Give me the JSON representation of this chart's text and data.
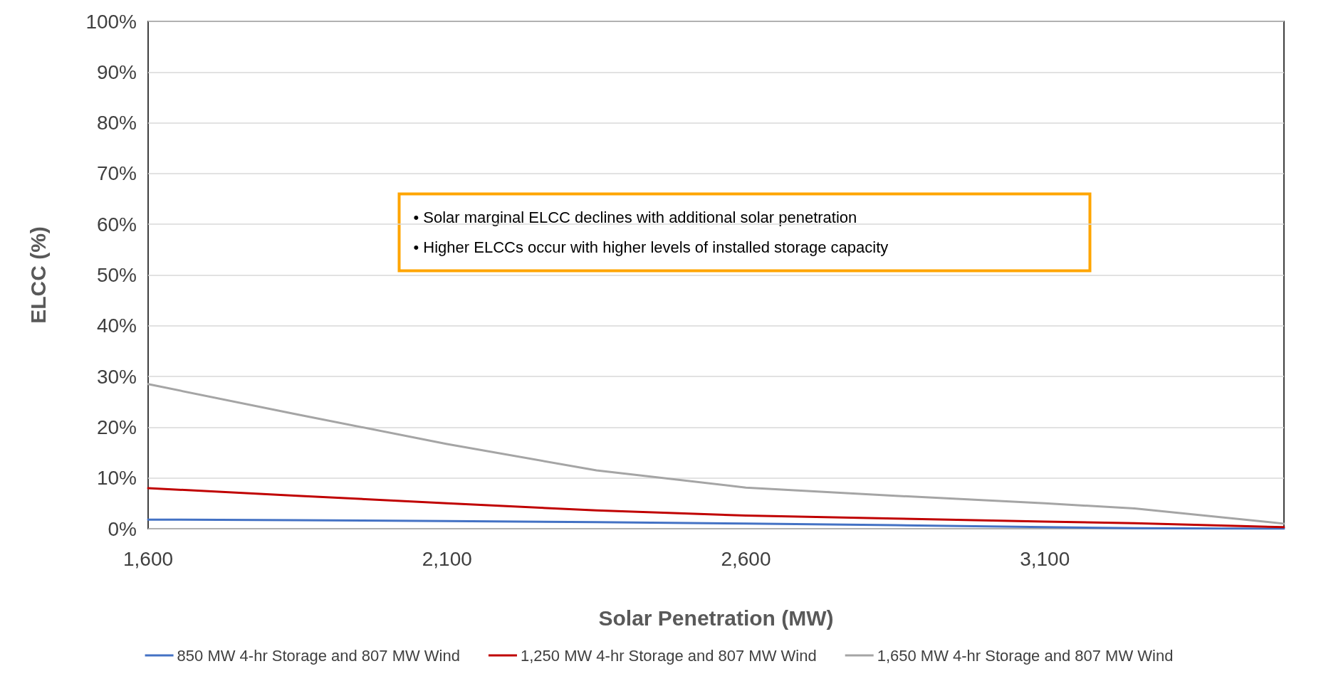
{
  "chart_data": {
    "type": "line",
    "xlabel": "Solar Penetration (MW)",
    "ylabel": "ELCC (%)",
    "xlim": [
      1600,
      3500
    ],
    "xticks": [
      {
        "value": 1600,
        "label": "1,600"
      },
      {
        "value": 2100,
        "label": "2,100"
      },
      {
        "value": 2600,
        "label": "2,600"
      },
      {
        "value": 3100,
        "label": "3,100"
      }
    ],
    "ylim": [
      0,
      100
    ],
    "yticks": [
      {
        "value": 0,
        "label": "0%"
      },
      {
        "value": 10,
        "label": "10%"
      },
      {
        "value": 20,
        "label": "20%"
      },
      {
        "value": 30,
        "label": "30%"
      },
      {
        "value": 40,
        "label": "40%"
      },
      {
        "value": 50,
        "label": "50%"
      },
      {
        "value": 60,
        "label": "60%"
      },
      {
        "value": 70,
        "label": "70%"
      },
      {
        "value": 80,
        "label": "80%"
      },
      {
        "value": 90,
        "label": "90%"
      },
      {
        "value": 100,
        "label": "100%"
      }
    ],
    "x": [
      1600,
      1850,
      2100,
      2350,
      2600,
      2850,
      3100,
      3250,
      3500
    ],
    "series": [
      {
        "name": "850 MW 4-hr Storage and 807 MW Wind",
        "color": "#4472c4",
        "values": [
          1.8,
          1.7,
          1.5,
          1.3,
          1.0,
          0.7,
          0.3,
          0.1,
          0
        ]
      },
      {
        "name": "1,250 MW 4-hr Storage and 807 MW Wind",
        "color": "#c00000",
        "values": [
          8,
          6.5,
          5,
          3.6,
          2.6,
          2,
          1.4,
          1.1,
          0.3
        ]
      },
      {
        "name": "1,650 MW 4-hr Storage and 807 MW Wind",
        "color": "#a5a5a5",
        "values": [
          28.5,
          22.5,
          16.7,
          11.5,
          8.1,
          6.5,
          5,
          4,
          1
        ]
      }
    ],
    "annotations": [
      "• Solar marginal ELCC declines with additional solar penetration",
      "• Higher ELCCs occur with higher levels of installed storage capacity"
    ],
    "grid": "y",
    "legend": "bottom",
    "marker": "none",
    "line_style": "solid"
  }
}
